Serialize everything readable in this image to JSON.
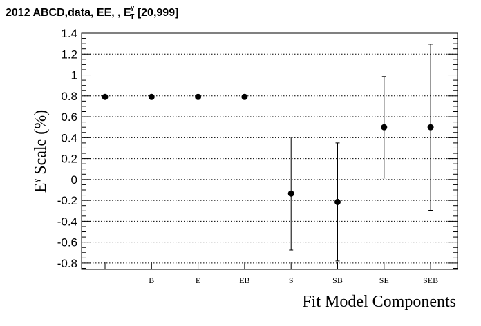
{
  "chart_data": {
    "type": "scatter",
    "title": {
      "prefix": "2012 ABCD,data, EE, , E",
      "sup": "γ",
      "sub": "T",
      "suffix": " [20,999]"
    },
    "ylabel": {
      "base": "E",
      "sup": "γ",
      "rest": " Scale (%)"
    },
    "xlabel": "Fit Model Components",
    "categories": [
      "",
      "B",
      "E",
      "EB",
      "S",
      "SB",
      "SE",
      "SEB"
    ],
    "values": [
      0.79,
      0.79,
      0.79,
      0.79,
      -0.135,
      -0.215,
      0.5,
      0.5
    ],
    "errors": [
      0,
      0,
      0,
      0,
      0.54,
      0.565,
      0.485,
      0.795
    ],
    "ylim": [
      -0.86,
      1.4
    ],
    "yticks": [
      -0.8,
      -0.6,
      -0.4,
      -0.2,
      0,
      0.2,
      0.4,
      0.6,
      0.8,
      1,
      1.2,
      1.4
    ],
    "ytick_labels": [
      "-0.8",
      "-0.6",
      "-0.4",
      "-0.2",
      "0",
      "0.2",
      "0.4",
      "0.6",
      "0.8",
      "1",
      "1.2",
      "1.4"
    ],
    "grid": "horizontal-dotted",
    "legend": "none"
  }
}
